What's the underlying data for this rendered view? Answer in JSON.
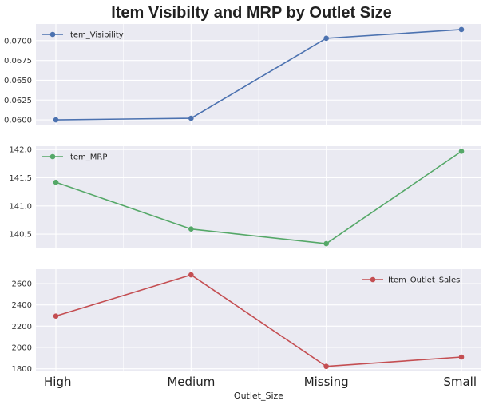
{
  "chart_data": {
    "type": "line",
    "title": "Item Visibilty and MRP by Outlet Size",
    "xlabel": "Outlet_Size",
    "categories": [
      "High",
      "Medium",
      "Missing",
      "Small"
    ],
    "grid": true,
    "subplots": [
      {
        "series": [
          {
            "name": "Item_Visibility",
            "values": [
              0.06,
              0.0602,
              0.0703,
              0.0714
            ],
            "color": "#4C72B0"
          }
        ],
        "ylim": [
          0.0593,
          0.0721
        ],
        "yticks": [
          0.06,
          0.0625,
          0.065,
          0.0675,
          0.07
        ],
        "ytick_labels": [
          "0.0600",
          "0.0625",
          "0.0650",
          "0.0675",
          "0.0700"
        ],
        "legend_position": "top-left"
      },
      {
        "series": [
          {
            "name": "Item_MRP",
            "values": [
              141.42,
              140.59,
              140.33,
              141.97
            ],
            "color": "#55A868"
          }
        ],
        "ylim": [
          140.26,
          142.06
        ],
        "yticks": [
          140.5,
          141.0,
          141.5,
          142.0
        ],
        "ytick_labels": [
          "140.5",
          "141.0",
          "141.5",
          "142.0"
        ],
        "legend_position": "top-left"
      },
      {
        "series": [
          {
            "name": "Item_Outlet_Sales",
            "values": [
              2295,
              2682,
              1822,
              1910
            ],
            "color": "#C44E52"
          }
        ],
        "ylim": [
          1775,
          2735
        ],
        "yticks": [
          1800,
          2000,
          2200,
          2400,
          2600
        ],
        "ytick_labels": [
          "1800",
          "2000",
          "2200",
          "2400",
          "2600"
        ],
        "legend_position": "top-right"
      }
    ]
  }
}
